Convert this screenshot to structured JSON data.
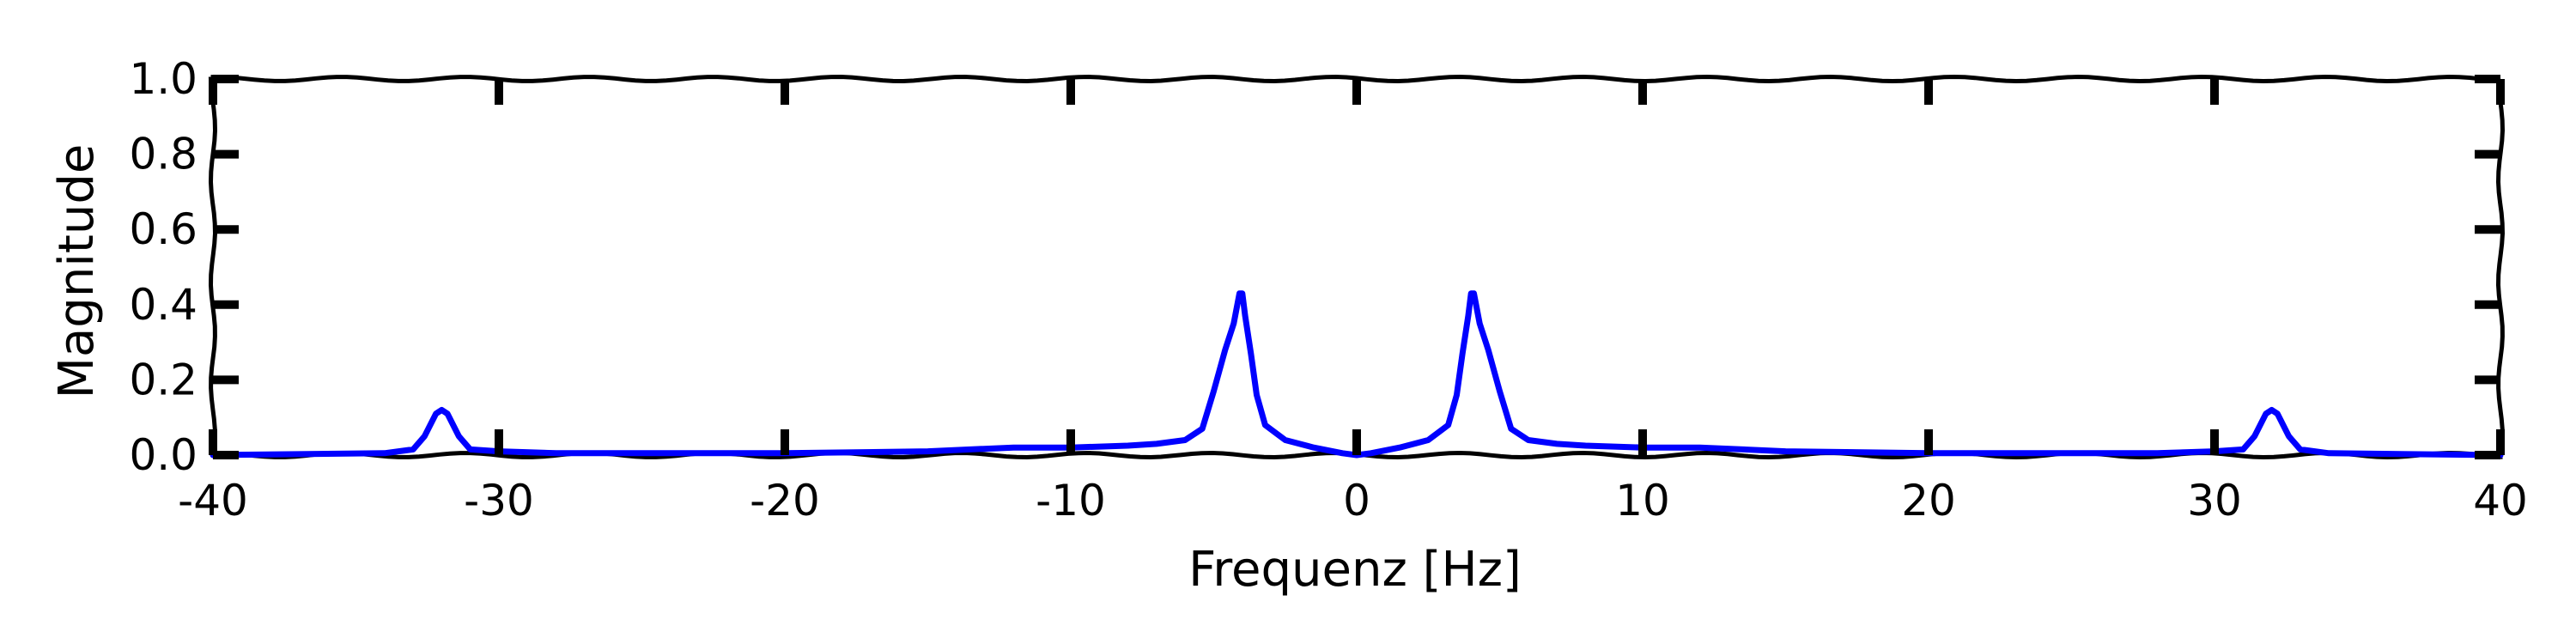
{
  "chart_data": {
    "type": "line",
    "title": "",
    "xlabel": "Frequenz [Hz]",
    "ylabel": "Magnitude",
    "xlim": [
      -40,
      40
    ],
    "ylim": [
      0.0,
      1.0
    ],
    "xticks": [
      -40,
      -30,
      -20,
      -10,
      0,
      10,
      20,
      30,
      40
    ],
    "xtick_labels": [
      "-40",
      "-30",
      "-20",
      "-10",
      "0",
      "10",
      "20",
      "30",
      "40"
    ],
    "yticks": [
      0.0,
      0.2,
      0.4,
      0.6,
      0.8,
      1.0
    ],
    "ytick_labels": [
      "0.0",
      "0.2",
      "0.4",
      "0.6",
      "0.8",
      "1.0"
    ],
    "grid": false,
    "legend": "none",
    "series": [
      {
        "color": "#0000ff",
        "x": [
          -40,
          -34,
          -33,
          -32.6,
          -32.2,
          -32,
          -31.8,
          -31.4,
          -31,
          -30,
          -28,
          -25,
          -20,
          -15,
          -12,
          -10,
          -8,
          -7,
          -6,
          -5.4,
          -5,
          -4.6,
          -4.3,
          -4.1,
          -4.0,
          -3.9,
          -3.7,
          -3.5,
          -3.2,
          -2.5,
          -1.5,
          -0.5,
          0,
          0.5,
          1.5,
          2.5,
          3.2,
          3.5,
          3.7,
          3.9,
          4.0,
          4.1,
          4.3,
          4.6,
          5,
          5.4,
          6,
          7,
          8,
          10,
          12,
          15,
          20,
          25,
          28,
          30,
          31,
          31.4,
          31.8,
          32,
          32.2,
          32.6,
          33,
          34,
          40
        ],
        "y": [
          0.0,
          0.005,
          0.015,
          0.05,
          0.11,
          0.12,
          0.11,
          0.05,
          0.015,
          0.01,
          0.005,
          0.005,
          0.005,
          0.01,
          0.02,
          0.02,
          0.025,
          0.03,
          0.04,
          0.07,
          0.17,
          0.28,
          0.35,
          0.43,
          0.43,
          0.37,
          0.27,
          0.16,
          0.08,
          0.04,
          0.02,
          0.005,
          0.0,
          0.005,
          0.02,
          0.04,
          0.08,
          0.16,
          0.27,
          0.37,
          0.43,
          0.43,
          0.35,
          0.28,
          0.17,
          0.07,
          0.04,
          0.03,
          0.025,
          0.02,
          0.02,
          0.01,
          0.005,
          0.005,
          0.005,
          0.01,
          0.015,
          0.05,
          0.11,
          0.12,
          0.11,
          0.05,
          0.015,
          0.005,
          0.0
        ]
      }
    ]
  }
}
